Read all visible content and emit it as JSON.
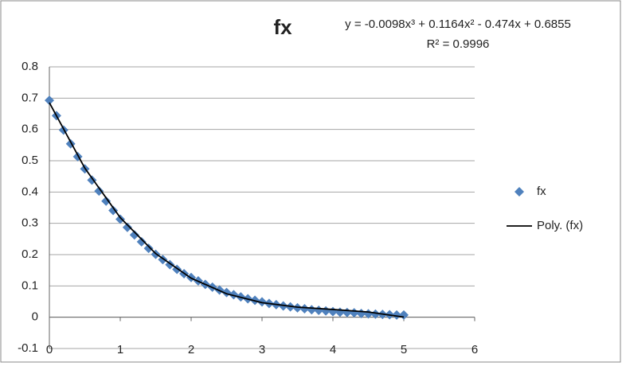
{
  "chart_data": {
    "type": "scatter",
    "title": "fx",
    "annotations": [
      "y = -0.0098x³ + 0.1164x² - 0.474x + 0.6855",
      "R² = 0.9996"
    ],
    "xlim": [
      0,
      6
    ],
    "xticks": [
      0,
      1,
      2,
      3,
      4,
      5,
      6
    ],
    "ylim": [
      -0.1,
      0.8
    ],
    "yticks": [
      -0.1,
      0,
      0.1,
      0.2,
      0.3,
      0.4,
      0.5,
      0.6,
      0.7,
      0.8
    ],
    "grid": true,
    "legend": "right",
    "series": [
      {
        "name": "fx",
        "color": "#4f81bd",
        "marker": "diamond",
        "x": [
          0,
          0.1,
          0.2,
          0.3,
          0.4,
          0.5,
          0.6,
          0.7,
          0.8,
          0.9,
          1,
          1.1,
          1.2,
          1.3,
          1.4,
          1.5,
          1.6,
          1.7,
          1.8,
          1.9,
          2,
          2.1,
          2.2,
          2.3,
          2.4,
          2.5,
          2.6,
          2.7,
          2.8,
          2.9,
          3,
          3.1,
          3.2,
          3.3,
          3.4,
          3.5,
          3.6,
          3.7,
          3.8,
          3.9,
          4,
          4.1,
          4.2,
          4.3,
          4.4,
          4.5,
          4.6,
          4.7,
          4.8,
          4.9,
          5
        ],
        "values": [
          0.693,
          0.644,
          0.598,
          0.554,
          0.513,
          0.474,
          0.438,
          0.403,
          0.371,
          0.341,
          0.313,
          0.287,
          0.263,
          0.241,
          0.22,
          0.201,
          0.184,
          0.168,
          0.153,
          0.139,
          0.127,
          0.116,
          0.105,
          0.096,
          0.087,
          0.079,
          0.072,
          0.065,
          0.059,
          0.054,
          0.049,
          0.044,
          0.04,
          0.036,
          0.033,
          0.03,
          0.027,
          0.024,
          0.022,
          0.02,
          0.018,
          0.016,
          0.015,
          0.014,
          0.012,
          0.011,
          0.01,
          0.009,
          0.008,
          0.007,
          0.007
        ]
      },
      {
        "name": "Poly. (fx)",
        "color": "#000000",
        "marker": "line",
        "x": [
          0,
          0.5,
          1,
          1.5,
          2,
          2.5,
          3,
          3.5,
          4,
          4.5,
          5
        ],
        "values": [
          0.6855,
          0.4764,
          0.3181,
          0.2033,
          0.1247,
          0.0749,
          0.0465,
          0.0322,
          0.0247,
          0.0166,
          0.0005
        ]
      }
    ]
  }
}
